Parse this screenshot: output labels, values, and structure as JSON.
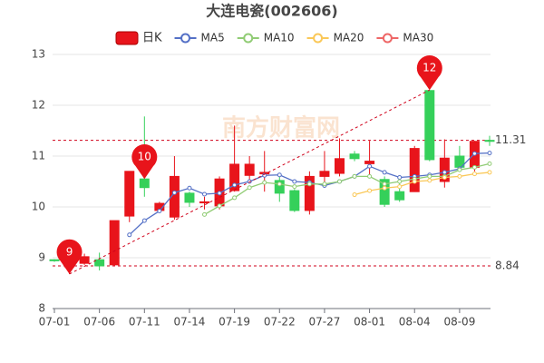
{
  "chart_data": {
    "type": "candlestick",
    "title": "大连电瓷(002606)",
    "watermark": "南方财富网",
    "categories": [
      "07-01",
      null,
      null,
      "07-06",
      null,
      null,
      "07-11",
      null,
      null,
      "07-14",
      null,
      null,
      "07-19",
      null,
      null,
      "07-22",
      null,
      null,
      "07-27",
      null,
      null,
      "08-01",
      null,
      null,
      "08-04",
      null,
      null,
      "08-09",
      null,
      null
    ],
    "candles": {
      "name": "日K",
      "up_color": "#e8141b",
      "down_color": "#35d05a",
      "open": [
        8.96,
        8.82,
        8.89,
        8.96,
        8.86,
        9.82,
        10.55,
        9.93,
        9.8,
        10.27,
        10.08,
        10.02,
        10.32,
        10.62,
        10.65,
        10.52,
        10.32,
        9.93,
        10.6,
        10.66,
        11.04,
        10.85,
        10.54,
        10.3,
        10.3,
        12.29,
        10.5,
        11.0,
        10.78,
        11.31
      ],
      "close": [
        8.94,
        8.88,
        9.02,
        8.84,
        9.73,
        10.7,
        10.38,
        10.07,
        10.6,
        10.09,
        10.1,
        10.55,
        10.84,
        10.84,
        10.68,
        10.27,
        9.93,
        10.6,
        10.7,
        10.95,
        10.95,
        10.9,
        10.05,
        10.14,
        11.15,
        10.93,
        10.96,
        10.78,
        11.29,
        11.29
      ],
      "high": [
        8.97,
        8.95,
        9.08,
        9.1,
        9.73,
        10.7,
        11.78,
        10.1,
        11.0,
        10.3,
        10.2,
        10.6,
        11.6,
        11.0,
        11.1,
        10.6,
        10.35,
        10.7,
        11.1,
        11.35,
        11.1,
        11.3,
        10.6,
        10.5,
        11.2,
        12.3,
        11.33,
        11.2,
        11.3,
        11.4
      ],
      "low": [
        8.92,
        8.68,
        8.86,
        8.75,
        8.84,
        9.7,
        10.2,
        9.9,
        9.75,
        10.0,
        9.95,
        9.95,
        10.3,
        10.5,
        10.3,
        10.1,
        9.9,
        9.85,
        10.4,
        10.6,
        10.9,
        10.6,
        10.0,
        10.1,
        10.3,
        10.9,
        10.38,
        10.7,
        10.7,
        11.2
      ]
    },
    "series": [
      {
        "name": "MA5",
        "color": "#5470c6",
        "values": [
          null,
          null,
          null,
          null,
          null,
          9.45,
          9.73,
          9.92,
          10.28,
          10.37,
          10.25,
          10.27,
          10.43,
          10.5,
          10.62,
          10.63,
          10.5,
          10.48,
          10.42,
          10.5,
          10.6,
          10.8,
          10.68,
          10.58,
          10.6,
          10.63,
          10.68,
          10.75,
          11.05,
          11.06
        ]
      },
      {
        "name": "MA10",
        "color": "#91cc75",
        "values": [
          null,
          null,
          null,
          null,
          null,
          null,
          null,
          null,
          null,
          null,
          9.85,
          10.02,
          10.18,
          10.38,
          10.48,
          10.45,
          10.4,
          10.45,
          10.45,
          10.5,
          10.6,
          10.6,
          10.45,
          10.5,
          10.55,
          10.6,
          10.6,
          10.73,
          10.78,
          10.85
        ]
      },
      {
        "name": "MA20",
        "color": "#fac858",
        "values": [
          null,
          null,
          null,
          null,
          null,
          null,
          null,
          null,
          null,
          null,
          null,
          null,
          null,
          null,
          null,
          null,
          null,
          null,
          null,
          null,
          10.24,
          10.32,
          10.37,
          10.4,
          10.5,
          10.52,
          10.58,
          10.6,
          10.65,
          10.68
        ]
      },
      {
        "name": "MA30",
        "color": "#ee6666",
        "values": [
          null,
          null,
          null,
          null,
          null,
          null,
          null,
          null,
          null,
          null,
          null,
          null,
          null,
          null,
          null,
          null,
          null,
          null,
          null,
          null,
          null,
          null,
          null,
          null,
          null,
          null,
          null,
          null,
          null,
          null
        ]
      }
    ],
    "markers": [
      {
        "value": 8.68,
        "label": "9"
      },
      {
        "value": 10.55,
        "label": "10"
      },
      {
        "value": 12.3,
        "label": "12"
      }
    ],
    "reference_lines": [
      {
        "value": 11.31
      },
      {
        "value": 8.84
      }
    ],
    "ylim": [
      8,
      13
    ],
    "yticks": [
      8,
      9,
      10,
      11,
      12,
      13
    ],
    "grid": true
  }
}
